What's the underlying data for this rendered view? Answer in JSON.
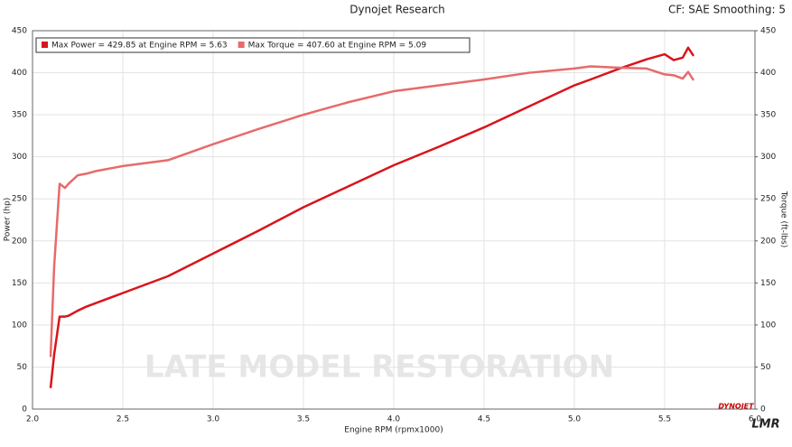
{
  "chart_data": {
    "type": "line",
    "title": "Dynojet Research",
    "subtitle": "CF: SAE Smoothing: 5",
    "x_label": "Engine RPM (rpmx1000)",
    "y_label": "Power (hp)",
    "y2_label": "Torque (ft-lbs)",
    "watermark": "LATE MODEL RESTORATION",
    "brand": "DYNOJET",
    "logo": "LMR",
    "x": [
      2.1,
      2.12,
      2.15,
      2.18,
      2.2,
      2.25,
      2.3,
      2.35,
      2.5,
      2.75,
      3.0,
      3.25,
      3.5,
      3.75,
      4.0,
      4.25,
      4.5,
      4.75,
      5.0,
      5.09,
      5.25,
      5.4,
      5.5,
      5.55,
      5.6,
      5.63,
      5.66
    ],
    "series": [
      {
        "name": "Max Power = 429.85 at Engine RPM = 5.63",
        "color": "#d9141b",
        "values": [
          25,
          65,
          110,
          110,
          111,
          117,
          122,
          126,
          138,
          158,
          185,
          212,
          240,
          265,
          290,
          312,
          335,
          360,
          385,
          392,
          405,
          416,
          422,
          415,
          418,
          429.85,
          420
        ]
      },
      {
        "name": "Max Torque = 407.60 at Engine RPM = 5.09",
        "color": "#e86a6a",
        "axis": "y2",
        "values": [
          62,
          170,
          268,
          263,
          268,
          278,
          280,
          283,
          289,
          296,
          315,
          333,
          350,
          365,
          378,
          385,
          392,
          400,
          405,
          407.6,
          406,
          405,
          398,
          397,
          393,
          401,
          391
        ]
      }
    ],
    "xlim": [
      2,
      6
    ],
    "xticks": [
      {
        "value": 2,
        "label": "2.0"
      },
      2.5,
      {
        "value": 3,
        "label": "3.0"
      },
      3.5,
      {
        "value": 4,
        "label": "4.0"
      },
      4.5,
      {
        "value": 5,
        "label": "5.0"
      },
      5.5,
      {
        "value": 6,
        "label": "6.0"
      }
    ],
    "ylim": [
      0,
      450
    ],
    "yticks": [
      0,
      50,
      100,
      150,
      200,
      250,
      300,
      350,
      400,
      450
    ],
    "y2lim": [
      0,
      450
    ],
    "y2ticks": [
      0,
      50,
      100,
      150,
      200,
      250,
      300,
      350,
      400,
      450
    ],
    "grid": true
  }
}
